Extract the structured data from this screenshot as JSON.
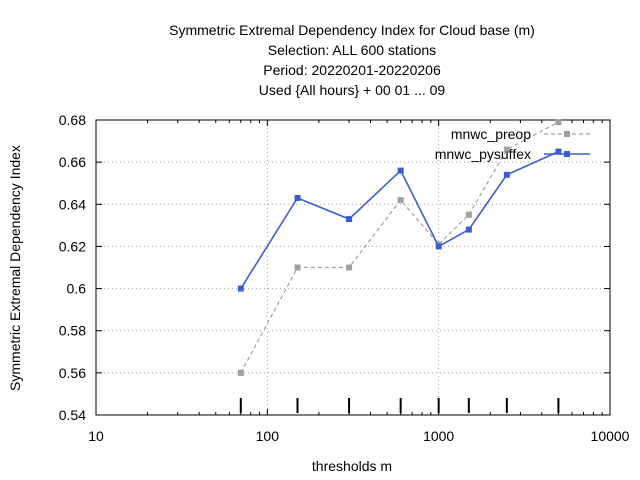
{
  "chart_data": {
    "type": "line",
    "title_lines": [
      "Symmetric Extremal Dependency Index  for Cloud base (m)",
      "Selection: ALL    600 stations",
      "Period: 20220201-20220206",
      "Used {All hours} + 00 01 ... 09"
    ],
    "xlabel": "thresholds m",
    "ylabel": "Symmetric Extremal Dependency Index",
    "x_scale": "log",
    "xlim": [
      10,
      10000
    ],
    "ylim": [
      0.54,
      0.68
    ],
    "x_ticks": [
      10,
      100,
      1000,
      10000
    ],
    "x_tick_labels": [
      "10",
      "100",
      "1000",
      "10000"
    ],
    "y_ticks": [
      0.54,
      0.56,
      0.58,
      0.6,
      0.62,
      0.64,
      0.66,
      0.68
    ],
    "y_tick_labels": [
      "0.54",
      "0.56",
      "0.58",
      "0.6",
      "0.62",
      "0.64",
      "0.66",
      "0.68"
    ],
    "grid": true,
    "legend_position": "top-right",
    "threshold_markers": [
      70,
      150,
      300,
      600,
      1000,
      1500,
      2500,
      5000
    ],
    "series": [
      {
        "name": "mnwc_preop",
        "color": "#a0a0a0",
        "dash": true,
        "x": [
          70,
          150,
          300,
          600,
          1000,
          1500,
          2500,
          5000
        ],
        "y": [
          0.56,
          0.61,
          0.61,
          0.642,
          0.621,
          0.635,
          0.666,
          0.679
        ]
      },
      {
        "name": "mnwc_pysuffex",
        "color": "#3a5fcd",
        "dash": false,
        "x": [
          70,
          150,
          300,
          600,
          1000,
          1500,
          2500,
          5000
        ],
        "y": [
          0.6,
          0.643,
          0.633,
          0.656,
          0.62,
          0.628,
          0.654,
          0.665
        ]
      }
    ]
  }
}
